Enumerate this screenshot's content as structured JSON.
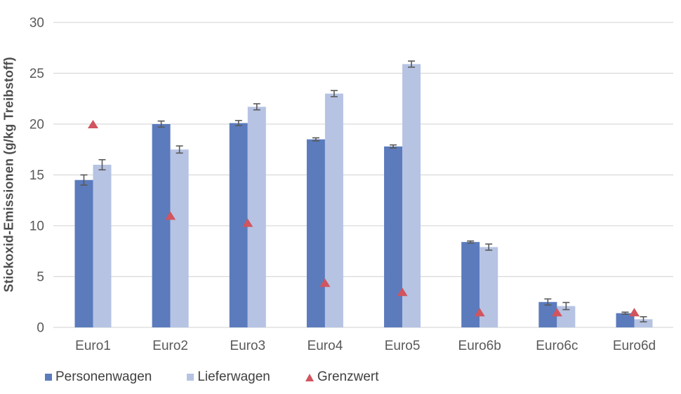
{
  "chart_data": {
    "type": "bar",
    "title": "",
    "xlabel": "",
    "ylabel": "Stickoxid-Emissionen (g/kg Treibstoff)",
    "ylim": [
      0,
      30
    ],
    "yticks": [
      0,
      5,
      10,
      15,
      20,
      25,
      30
    ],
    "grid": true,
    "legend_position": "bottom-left",
    "categories": [
      "Euro1",
      "Euro2",
      "Euro3",
      "Euro4",
      "Euro5",
      "Euro6b",
      "Euro6c",
      "Euro6d"
    ],
    "series": [
      {
        "name": "Personenwagen",
        "type": "bar",
        "color": "#5b7bbd",
        "values": [
          14.5,
          20.0,
          20.1,
          18.5,
          17.8,
          8.4,
          2.5,
          1.4
        ],
        "error_bars": [
          0.5,
          0.3,
          0.25,
          0.15,
          0.15,
          0.1,
          0.3,
          0.1
        ]
      },
      {
        "name": "Lieferwagen",
        "type": "bar",
        "color": "#b6c3e3",
        "values": [
          16.0,
          17.5,
          21.7,
          23.0,
          25.9,
          7.9,
          2.1,
          0.8
        ],
        "error_bars": [
          0.5,
          0.35,
          0.3,
          0.3,
          0.3,
          0.3,
          0.35,
          0.25
        ]
      },
      {
        "name": "Grenzwert",
        "type": "scatter-triangle",
        "color": "#d1545e",
        "values": [
          20.0,
          11.0,
          10.3,
          4.4,
          3.5,
          1.5,
          1.5,
          1.5
        ]
      }
    ],
    "style_colors": {
      "gridline": "#d9d9d9",
      "axis_text": "#595959",
      "error_bar": "#595959",
      "legend_text": "#404040",
      "ylabel_text": "#4d4d4d"
    }
  }
}
